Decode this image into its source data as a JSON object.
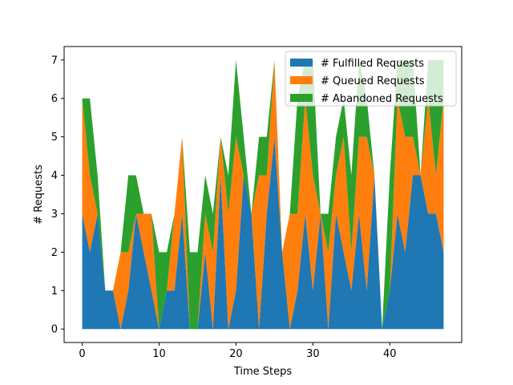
{
  "chart_data": {
    "type": "area",
    "stacked": true,
    "xlabel": "Time Steps",
    "ylabel": "# Requests",
    "xlim": [
      -2.35,
      49.35
    ],
    "ylim": [
      -0.35,
      7.35
    ],
    "xticks": [
      0,
      10,
      20,
      30,
      40
    ],
    "yticks": [
      0,
      1,
      2,
      3,
      4,
      5,
      6,
      7
    ],
    "grid": false,
    "legend_position": "top-right",
    "x": [
      0,
      1,
      2,
      3,
      4,
      5,
      6,
      7,
      8,
      9,
      10,
      11,
      12,
      13,
      14,
      15,
      16,
      17,
      18,
      19,
      20,
      21,
      22,
      23,
      24,
      25,
      26,
      27,
      28,
      29,
      30,
      31,
      32,
      33,
      34,
      35,
      36,
      37,
      38,
      39,
      40,
      41,
      42,
      43,
      44,
      45,
      46,
      47
    ],
    "series": [
      {
        "name": "# Fulfilled Requests",
        "color": "#1f77b4",
        "values": [
          3,
          2,
          3,
          1,
          1,
          0,
          1,
          3,
          2,
          1,
          0,
          1,
          1,
          3,
          0,
          0,
          2,
          0,
          4,
          0,
          1,
          4,
          3,
          0,
          3,
          5,
          2,
          0,
          1,
          3,
          1,
          3,
          0,
          3,
          2,
          1,
          3,
          1,
          4,
          0,
          1,
          3,
          2,
          4,
          4,
          3,
          3,
          2
        ]
      },
      {
        "name": "# Queued Requests",
        "color": "#ff7f0e",
        "values": [
          3,
          2,
          0,
          0,
          0,
          2,
          1,
          0,
          1,
          2,
          0,
          0,
          2,
          2,
          0,
          0,
          1,
          2,
          1,
          3,
          4,
          0,
          0,
          4,
          1,
          2,
          0,
          3,
          2,
          3,
          3,
          0,
          2,
          1,
          3,
          1,
          2,
          4,
          0,
          0,
          0,
          3,
          3,
          1,
          0,
          3,
          1,
          4
        ]
      },
      {
        "name": "# Abandoned Requests",
        "color": "#2ca02c",
        "values": [
          0,
          2,
          1,
          0,
          0,
          0,
          2,
          1,
          0,
          0,
          2,
          1,
          0,
          0,
          2,
          2,
          1,
          1,
          0,
          1,
          2,
          1,
          0,
          1,
          1,
          0,
          0,
          0,
          3,
          1,
          3,
          0,
          1,
          1,
          1,
          2,
          2,
          1,
          0,
          0,
          3,
          1,
          2,
          2,
          0,
          1,
          3,
          1
        ]
      }
    ]
  }
}
